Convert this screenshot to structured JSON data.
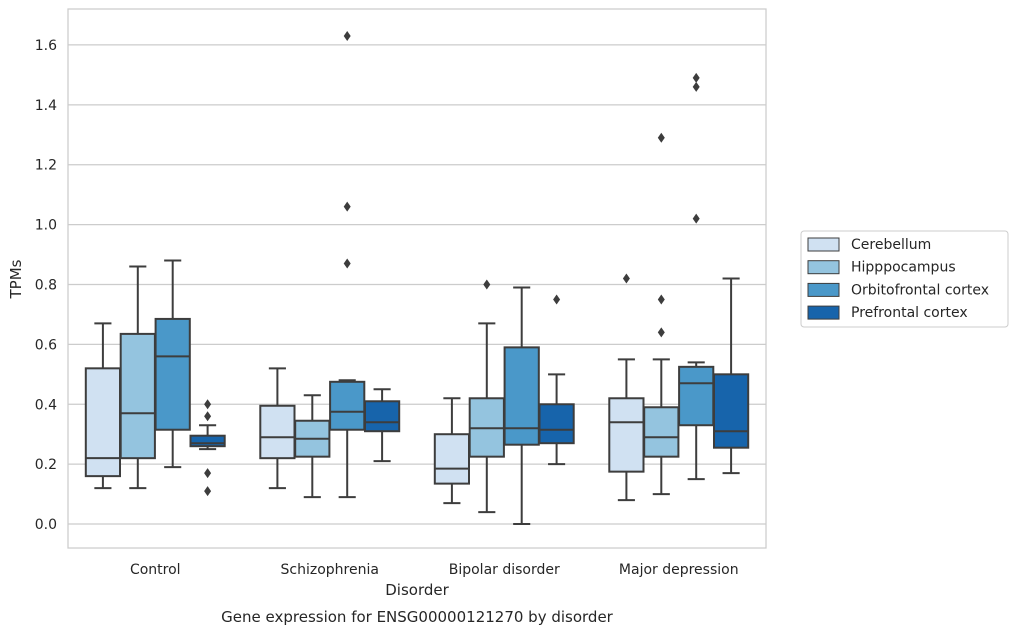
{
  "chart_data": {
    "type": "box",
    "caption": "Gene expression for ENSG00000121270 by disorder",
    "xlabel": "Disorder",
    "ylabel": "TPMs",
    "ylim": [
      -0.08,
      1.72
    ],
    "yticks": [
      0.0,
      0.2,
      0.4,
      0.6,
      0.8,
      1.0,
      1.2,
      1.4,
      1.6
    ],
    "ytick_labels": [
      "0.0",
      "0.2",
      "0.4",
      "0.6",
      "0.8",
      "1.0",
      "1.2",
      "1.4",
      "1.6"
    ],
    "grid": "horizontal",
    "legend_position": "right",
    "categories": [
      "Control",
      "Schizophrenia",
      "Bipolar disorder",
      "Major depression"
    ],
    "series": [
      {
        "name": "Cerebellum",
        "color": "#d0e1f2",
        "boxes": [
          {
            "whislo": 0.12,
            "q1": 0.16,
            "med": 0.22,
            "q3": 0.52,
            "whishi": 0.67,
            "fliers": []
          },
          {
            "whislo": 0.12,
            "q1": 0.22,
            "med": 0.29,
            "q3": 0.395,
            "whishi": 0.52,
            "fliers": []
          },
          {
            "whislo": 0.07,
            "q1": 0.135,
            "med": 0.185,
            "q3": 0.3,
            "whishi": 0.42,
            "fliers": []
          },
          {
            "whislo": 0.08,
            "q1": 0.175,
            "med": 0.34,
            "q3": 0.42,
            "whishi": 0.55,
            "fliers": [
              0.82
            ]
          }
        ]
      },
      {
        "name": "Hipppocampus",
        "color": "#94c4df",
        "boxes": [
          {
            "whislo": 0.12,
            "q1": 0.22,
            "med": 0.37,
            "q3": 0.635,
            "whishi": 0.86,
            "fliers": []
          },
          {
            "whislo": 0.09,
            "q1": 0.225,
            "med": 0.285,
            "q3": 0.345,
            "whishi": 0.43,
            "fliers": []
          },
          {
            "whislo": 0.04,
            "q1": 0.225,
            "med": 0.32,
            "q3": 0.42,
            "whishi": 0.67,
            "fliers": [
              0.8
            ]
          },
          {
            "whislo": 0.1,
            "q1": 0.225,
            "med": 0.29,
            "q3": 0.39,
            "whishi": 0.55,
            "fliers": [
              0.64,
              0.75,
              1.29
            ]
          }
        ]
      },
      {
        "name": "Orbitofrontal cortex",
        "color": "#4a98c9",
        "boxes": [
          {
            "whislo": 0.19,
            "q1": 0.315,
            "med": 0.56,
            "q3": 0.685,
            "whishi": 0.88,
            "fliers": []
          },
          {
            "whislo": 0.09,
            "q1": 0.315,
            "med": 0.375,
            "q3": 0.475,
            "whishi": 0.48,
            "fliers": [
              0.87,
              1.06,
              1.63
            ]
          },
          {
            "whislo": 0.0,
            "q1": 0.265,
            "med": 0.32,
            "q3": 0.59,
            "whishi": 0.79,
            "fliers": []
          },
          {
            "whislo": 0.15,
            "q1": 0.33,
            "med": 0.47,
            "q3": 0.525,
            "whishi": 0.54,
            "fliers": [
              1.02,
              1.46,
              1.49
            ]
          }
        ]
      },
      {
        "name": "Prefrontal cortex",
        "color": "#1764ab",
        "boxes": [
          {
            "whislo": 0.25,
            "q1": 0.26,
            "med": 0.27,
            "q3": 0.295,
            "whishi": 0.33,
            "fliers": [
              0.11,
              0.17,
              0.36,
              0.4
            ]
          },
          {
            "whislo": 0.21,
            "q1": 0.31,
            "med": 0.34,
            "q3": 0.41,
            "whishi": 0.45,
            "fliers": []
          },
          {
            "whislo": 0.2,
            "q1": 0.27,
            "med": 0.315,
            "q3": 0.4,
            "whishi": 0.5,
            "fliers": [
              0.75
            ]
          },
          {
            "whislo": 0.17,
            "q1": 0.255,
            "med": 0.31,
            "q3": 0.5,
            "whishi": 0.82,
            "fliers": []
          }
        ]
      }
    ]
  }
}
